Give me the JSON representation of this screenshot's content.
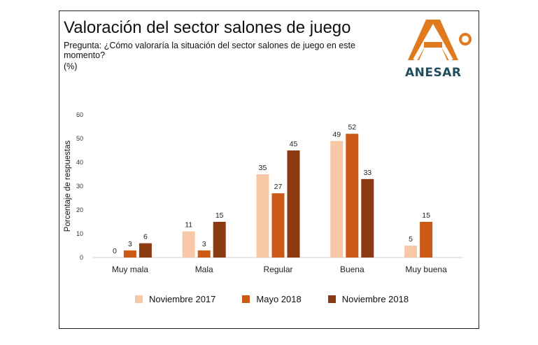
{
  "header": {
    "title": "Valoración del sector salones de juego",
    "question": "Pregunta: ¿Cómo valoraría la situación del sector salones de juego en este momento?",
    "unit": "(%)"
  },
  "logo": {
    "text": "ANESAR",
    "mark": "A°"
  },
  "colors": {
    "nov2017": "#f7c8a5",
    "may2018": "#cc5a17",
    "nov2018": "#8b3a12",
    "logo": "#e07a1e"
  },
  "chart_data": {
    "type": "bar",
    "title": "Valoración del sector salones de juego",
    "subtitle": "Pregunta: ¿Cómo valoraría la situación del sector salones de juego en este momento?",
    "xlabel": "",
    "ylabel": "Porcentaje de respuestas",
    "ylim": [
      0,
      60
    ],
    "yticks": [
      0,
      10,
      20,
      30,
      40,
      50,
      60
    ],
    "grid": false,
    "legend_position": "bottom",
    "categories": [
      "Muy mala",
      "Mala",
      "Regular",
      "Buena",
      "Muy buena"
    ],
    "series": [
      {
        "name": "Noviembre 2017",
        "color": "#f7c8a5",
        "values": [
          0,
          11,
          35,
          49,
          5
        ]
      },
      {
        "name": "Mayo 2018",
        "color": "#cc5a17",
        "values": [
          3,
          3,
          27,
          52,
          15
        ]
      },
      {
        "name": "Noviembre 2018",
        "color": "#8b3a12",
        "values": [
          6,
          15,
          45,
          33,
          null
        ]
      }
    ]
  }
}
